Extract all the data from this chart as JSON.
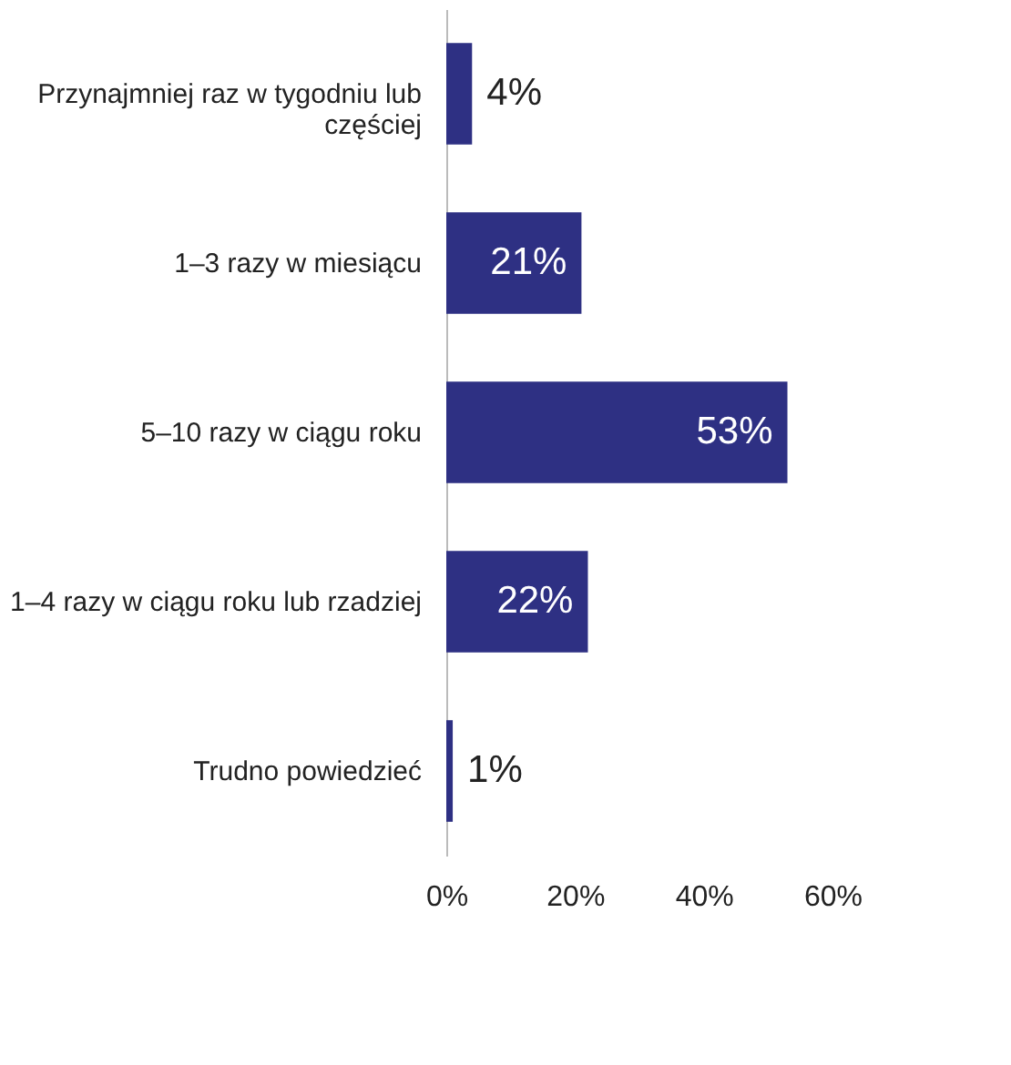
{
  "chart_data": {
    "type": "bar",
    "orientation": "horizontal",
    "categories": [
      "Przynajmniej raz w tygodniu lub częściej",
      "1–3 razy w miesiącu",
      "5–10 razy w ciągu roku",
      "1–4 razy w ciągu roku lub rzadziej",
      "Trudno powiedzieć"
    ],
    "values": [
      4,
      21,
      53,
      22,
      1
    ],
    "value_labels": [
      "4%",
      "21%",
      "53%",
      "22%",
      "1%"
    ],
    "color": "#2e3083",
    "xlim": [
      0,
      60
    ],
    "xticks": [
      {
        "value": 0,
        "label": "0%"
      },
      {
        "value": 20,
        "label": "20%"
      },
      {
        "value": 40,
        "label": "40%"
      },
      {
        "value": 60,
        "label": "60%"
      }
    ],
    "grid": false
  }
}
